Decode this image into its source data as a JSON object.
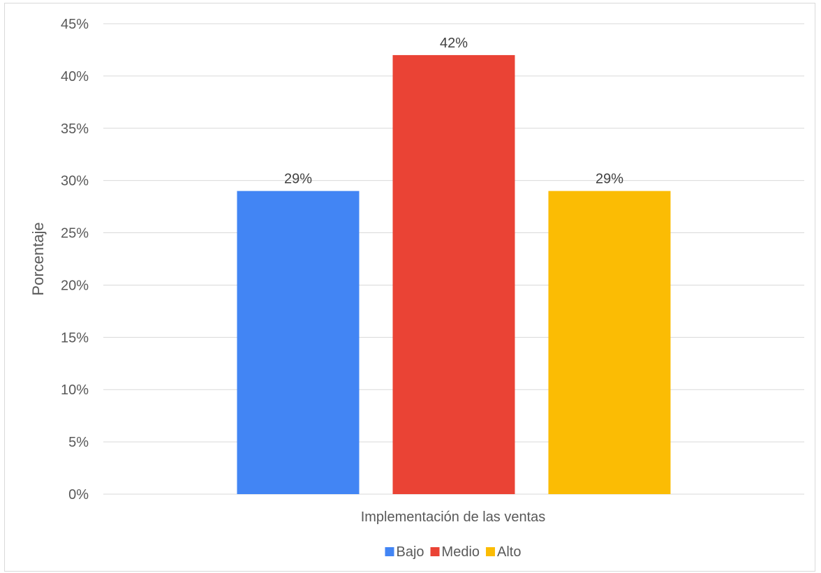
{
  "chart_data": {
    "type": "bar",
    "categories": [
      "Implementación de las ventas"
    ],
    "series": [
      {
        "name": "Bajo",
        "values": [
          29
        ],
        "label": "29%",
        "color": "#4285F4"
      },
      {
        "name": "Medio",
        "values": [
          42
        ],
        "label": "42%",
        "color": "#EA4335"
      },
      {
        "name": "Alto",
        "values": [
          29
        ],
        "label": "29%",
        "color": "#FBBC04"
      }
    ],
    "title": "",
    "xlabel": "Implementación de las ventas",
    "ylabel": "Porcentaje",
    "ylim": [
      0,
      45
    ],
    "yticks": [
      {
        "value": 0,
        "label": "0%"
      },
      {
        "value": 5,
        "label": "5%"
      },
      {
        "value": 10,
        "label": "10%"
      },
      {
        "value": 15,
        "label": "15%"
      },
      {
        "value": 20,
        "label": "20%"
      },
      {
        "value": 25,
        "label": "25%"
      },
      {
        "value": 30,
        "label": "30%"
      },
      {
        "value": 35,
        "label": "35%"
      },
      {
        "value": 40,
        "label": "40%"
      },
      {
        "value": 45,
        "label": "45%"
      }
    ],
    "grid": true,
    "legend": "bottom"
  }
}
